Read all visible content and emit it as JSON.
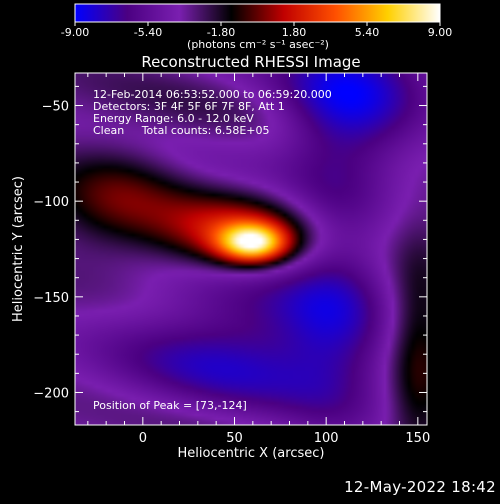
{
  "chart_data": {
    "type": "heatmap",
    "title": "Reconstructed RHESSI Image",
    "xlabel": "Heliocentric X (arcsec)",
    "ylabel": "Heliocentric Y (arcsec)",
    "xlim": [
      -37,
      155
    ],
    "ylim": [
      -217,
      -33
    ],
    "x_ticks": [
      0,
      50,
      100,
      150
    ],
    "y_ticks": [
      -50,
      -100,
      -150,
      -200
    ],
    "colorbar": {
      "range": [
        -9.0,
        9.0
      ],
      "tick_labels": [
        "-9.00",
        "-5.40",
        "-1.80",
        "1.80",
        "5.40",
        "9.00"
      ],
      "unit_label": "(photons cm⁻² s⁻¹ asec⁻²)",
      "colors": [
        "#0000ff",
        "#4b0082",
        "#7a1fb0",
        "#000000",
        "#c00000",
        "#ff5000",
        "#ffd000",
        "#ffffff"
      ]
    },
    "annotations": {
      "time_range": "12-Feb-2014 06:53:52.000 to 06:59:20.000",
      "detectors": "Detectors: 3F 4F 5F 6F 7F 8F, Att 1",
      "energy": "Energy Range: 6.0 - 12.0 keV",
      "clean": "Clean     Total counts: 6.58E+05",
      "peak": "Position of Peak = [73,-124]"
    },
    "peak": [
      73,
      -124
    ],
    "sources": [
      {
        "x": 60,
        "y": -122,
        "sx": 13,
        "sy": 7,
        "amp": 9.0
      },
      {
        "x": 48,
        "y": -118,
        "sx": 30,
        "sy": 14,
        "amp": 5.0
      },
      {
        "x": -15,
        "y": -100,
        "sx": 25,
        "sy": 20,
        "amp": 2.8
      },
      {
        "x": 150,
        "y": -180,
        "sx": 12,
        "sy": 40,
        "amp": 3.2
      },
      {
        "x": 115,
        "y": -45,
        "sx": 30,
        "sy": 25,
        "amp": -4.5
      },
      {
        "x": 55,
        "y": -175,
        "sx": 50,
        "sy": 25,
        "amp": -4.2
      },
      {
        "x": 105,
        "y": -140,
        "sx": 20,
        "sy": 60,
        "amp": -2.6
      }
    ]
  },
  "footer": {
    "timestamp": "12-May-2022 18:42"
  }
}
